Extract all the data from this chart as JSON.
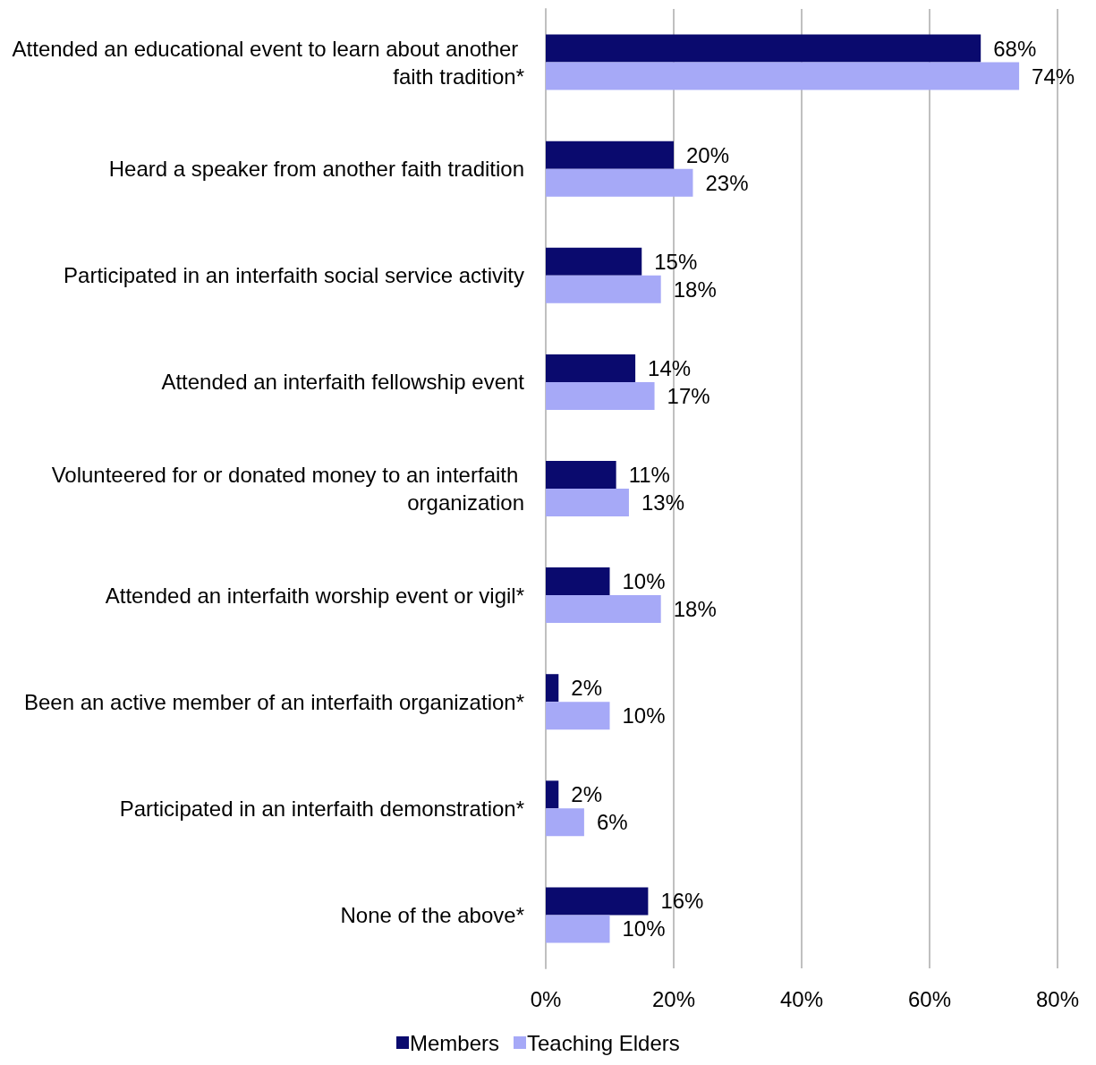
{
  "chart_data": {
    "type": "bar",
    "orientation": "horizontal",
    "categories": [
      "Attended an educational event to learn about another faith tradition*",
      "Heard a speaker from another faith tradition",
      "Participated in an interfaith social service activity",
      "Attended an interfaith fellowship event",
      "Volunteered for or donated money to an interfaith organization",
      "Attended an interfaith worship event or vigil*",
      "Been an active member of an interfaith organization*",
      "Participated in an interfaith demonstration*",
      "None of the above*"
    ],
    "series": [
      {
        "name": "Members",
        "color": "#0a0a6e",
        "values": [
          68,
          20,
          15,
          14,
          11,
          10,
          2,
          2,
          16
        ],
        "value_labels": [
          "68%",
          "20%",
          "15%",
          "14%",
          "11%",
          "10%",
          "2%",
          "2%",
          "16%"
        ]
      },
      {
        "name": "Teaching Elders",
        "color": "#a6a9f7",
        "values": [
          74,
          23,
          18,
          17,
          13,
          18,
          10,
          6,
          10
        ],
        "value_labels": [
          "74%",
          "23%",
          "18%",
          "17%",
          "13%",
          "18%",
          "10%",
          "6%",
          "10%"
        ]
      }
    ],
    "xlim": [
      0,
      80
    ],
    "xticks": [
      {
        "value": 0,
        "label": "0%"
      },
      {
        "value": 20,
        "label": "20%"
      },
      {
        "value": 40,
        "label": "40%"
      },
      {
        "value": 60,
        "label": "60%"
      },
      {
        "value": 80,
        "label": "80%"
      }
    ],
    "grid": "x",
    "legend": "bottom"
  }
}
